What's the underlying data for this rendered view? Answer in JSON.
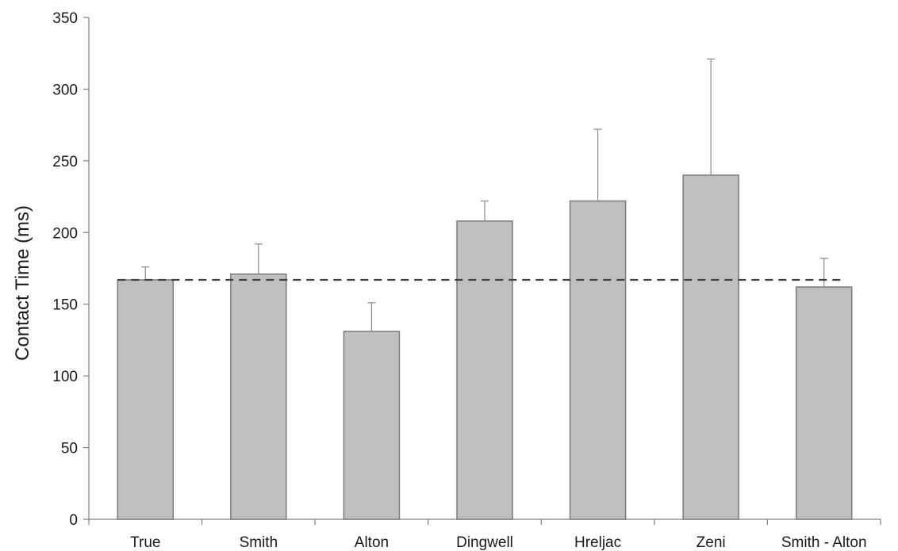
{
  "chart_data": {
    "type": "bar",
    "title": "",
    "xlabel": "",
    "ylabel": "Contact Time (ms)",
    "ylim": [
      0,
      350
    ],
    "yticks": [
      0,
      50,
      100,
      150,
      200,
      250,
      300,
      350
    ],
    "categories": [
      "True",
      "Smith",
      "Alton",
      "Dingwell",
      "Hreljac",
      "Zeni",
      "Smith - Alton"
    ],
    "values": [
      167,
      171,
      131,
      208,
      222,
      240,
      162
    ],
    "error_plus": [
      9,
      21,
      20,
      14,
      50,
      81,
      20
    ],
    "reference_line": {
      "value": 167,
      "style": "dashed"
    },
    "grid": false,
    "colors": {
      "bar_fill": "#c0c0c0",
      "bar_stroke": "#7a7a7a",
      "error_bar": "#8a8a8a",
      "axis": "#808080",
      "reference_line": "#404040"
    }
  }
}
